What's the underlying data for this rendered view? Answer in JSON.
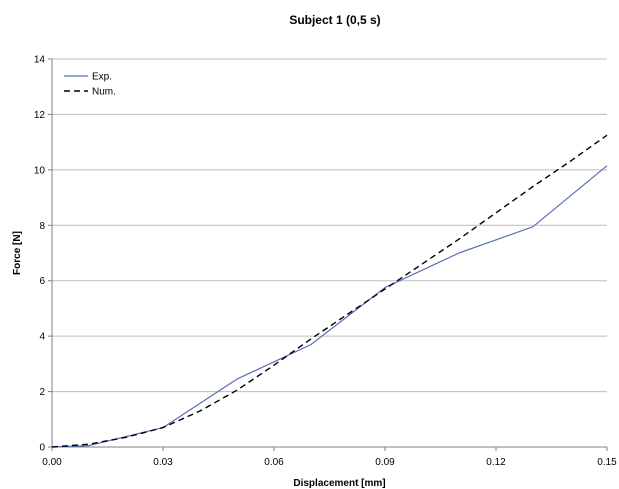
{
  "chart_data": {
    "type": "line",
    "title": "Subject 1 (0,5 s)",
    "xlabel": "Displacement [mm]",
    "ylabel": "Force [N]",
    "xlim": [
      0,
      0.15
    ],
    "ylim": [
      0,
      14
    ],
    "x_ticks": [
      "0.00",
      "0.03",
      "0.06",
      "0.09",
      "0.12",
      "0.15"
    ],
    "x_tick_values": [
      0,
      0.03,
      0.06,
      0.09,
      0.12,
      0.15
    ],
    "y_ticks": [
      "0",
      "2",
      "4",
      "6",
      "8",
      "10",
      "12",
      "14"
    ],
    "y_tick_values": [
      0,
      2,
      4,
      6,
      8,
      10,
      12,
      14
    ],
    "grid": "horizontal",
    "legend_position": "top-left",
    "series": [
      {
        "name": "Exp.",
        "color": "#5a6fb8",
        "dash": "solid",
        "x": [
          0,
          0.01,
          0.03,
          0.05,
          0.07,
          0.09,
          0.11,
          0.13,
          0.15
        ],
        "y": [
          0,
          0.05,
          0.7,
          2.45,
          3.7,
          5.75,
          7.0,
          7.95,
          10.15
        ]
      },
      {
        "name": "Num.",
        "color": "#000000",
        "dash": "dashed",
        "x": [
          0,
          0.01,
          0.02,
          0.03,
          0.04,
          0.05,
          0.06,
          0.07,
          0.08,
          0.09,
          0.1,
          0.11,
          0.12,
          0.13,
          0.14,
          0.15
        ],
        "y": [
          0,
          0.1,
          0.35,
          0.7,
          1.3,
          2.05,
          2.95,
          3.9,
          4.8,
          5.7,
          6.6,
          7.5,
          8.45,
          9.4,
          10.3,
          11.25
        ]
      }
    ]
  }
}
